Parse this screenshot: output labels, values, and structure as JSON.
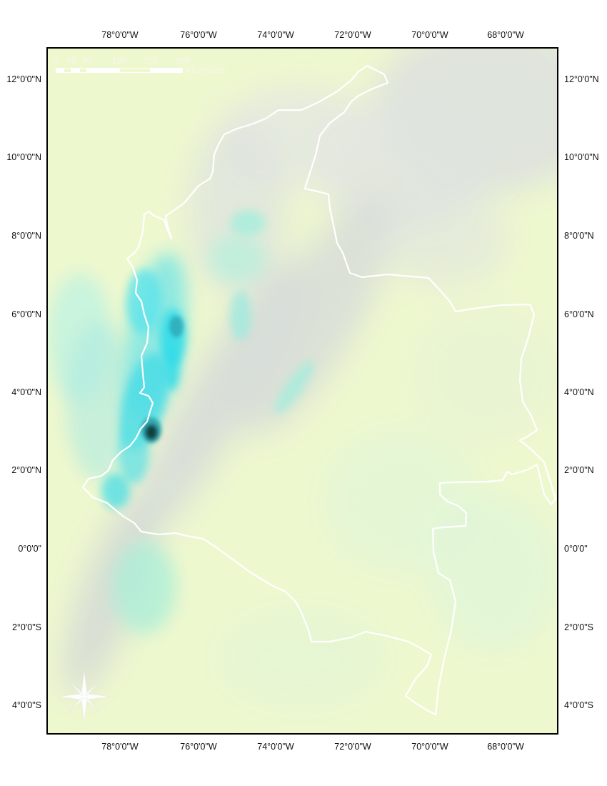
{
  "axes": {
    "top_longitudes": [
      "78°0'0\"W",
      "76°0'0\"W",
      "74°0'0\"W",
      "72°0'0\"W",
      "70°0'0\"W",
      "68°0'0\"W"
    ],
    "bottom_longitudes": [
      "78°0'0\"W",
      "76°0'0\"W",
      "74°0'0\"W",
      "72°0'0\"W",
      "70°0'0\"W",
      "68°0'0\"W"
    ],
    "left_latitudes": [
      "12°0'0\"N",
      "10°0'0\"N",
      "8°0'0\"N",
      "6°0'0\"N",
      "4°0'0\"N",
      "2°0'0\"N",
      "0°0'0\"",
      "2°0'0\"S",
      "4°0'0\"S"
    ],
    "right_latitudes": [
      "12°0'0\"N",
      "10°0'0\"N",
      "8°0'0\"N",
      "6°0'0\"N",
      "4°0'0\"N",
      "2°0'0\"N",
      "0°0'0\"",
      "2°0'0\"S",
      "4°0'0\"S"
    ]
  },
  "scale_bar": {
    "labels": [
      "0",
      "45",
      "90",
      "180",
      "270",
      "360"
    ],
    "unit": "Kilometers"
  },
  "colors": {
    "background_land": "#eef8cf",
    "highland_gray": "#d9dedb",
    "wet_cyan": "#2fe0ec",
    "wettest_dark": "#0f3a3a",
    "border_white": "#ffffff"
  },
  "icons": {
    "north_arrow": "compass-rose-icon"
  }
}
